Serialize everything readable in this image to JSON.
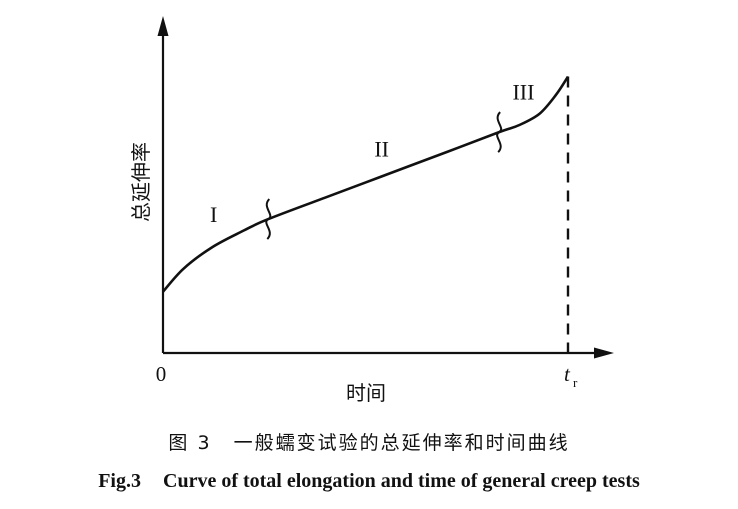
{
  "chart_data": {
    "type": "line",
    "title": "Curve of total elongation and time of general creep tests",
    "xlabel": "时间",
    "ylabel": "总延伸率",
    "origin_label": "0",
    "rupture_label": {
      "main": "t",
      "sub": "r"
    },
    "xlim": [
      0,
      1
    ],
    "ylim": [
      0,
      1
    ],
    "x_ticks": [],
    "y_ticks": [],
    "grid": false,
    "legend": "none",
    "series": [
      {
        "name": "creep curve",
        "x": [
          0,
          0.05,
          0.12,
          0.2,
          0.26,
          0.4,
          0.55,
          0.7,
          0.83,
          0.88,
          0.93,
          0.97,
          1.0
        ],
        "y": [
          0.215,
          0.295,
          0.37,
          0.43,
          0.47,
          0.545,
          0.625,
          0.705,
          0.775,
          0.8,
          0.84,
          0.905,
          0.97
        ]
      }
    ],
    "stage_labels": [
      {
        "text": "I",
        "x": 0.125,
        "y": 0.46
      },
      {
        "text": "II",
        "x": 0.54,
        "y": 0.69
      },
      {
        "text": "III",
        "x": 0.89,
        "y": 0.89
      }
    ],
    "stage_boundaries": [
      {
        "x": 0.26,
        "y": 0.47
      },
      {
        "x": 0.83,
        "y": 0.775
      }
    ],
    "rupture_x": 1.0
  },
  "caption": {
    "cn_label": "图 3",
    "cn_text": "一般蠕变试验的总延伸率和时间曲线",
    "en_label": "Fig.3",
    "en_text": "Curve of total elongation and time of general creep tests"
  },
  "colors": {
    "ink": "#111111",
    "background": "#ffffff"
  }
}
